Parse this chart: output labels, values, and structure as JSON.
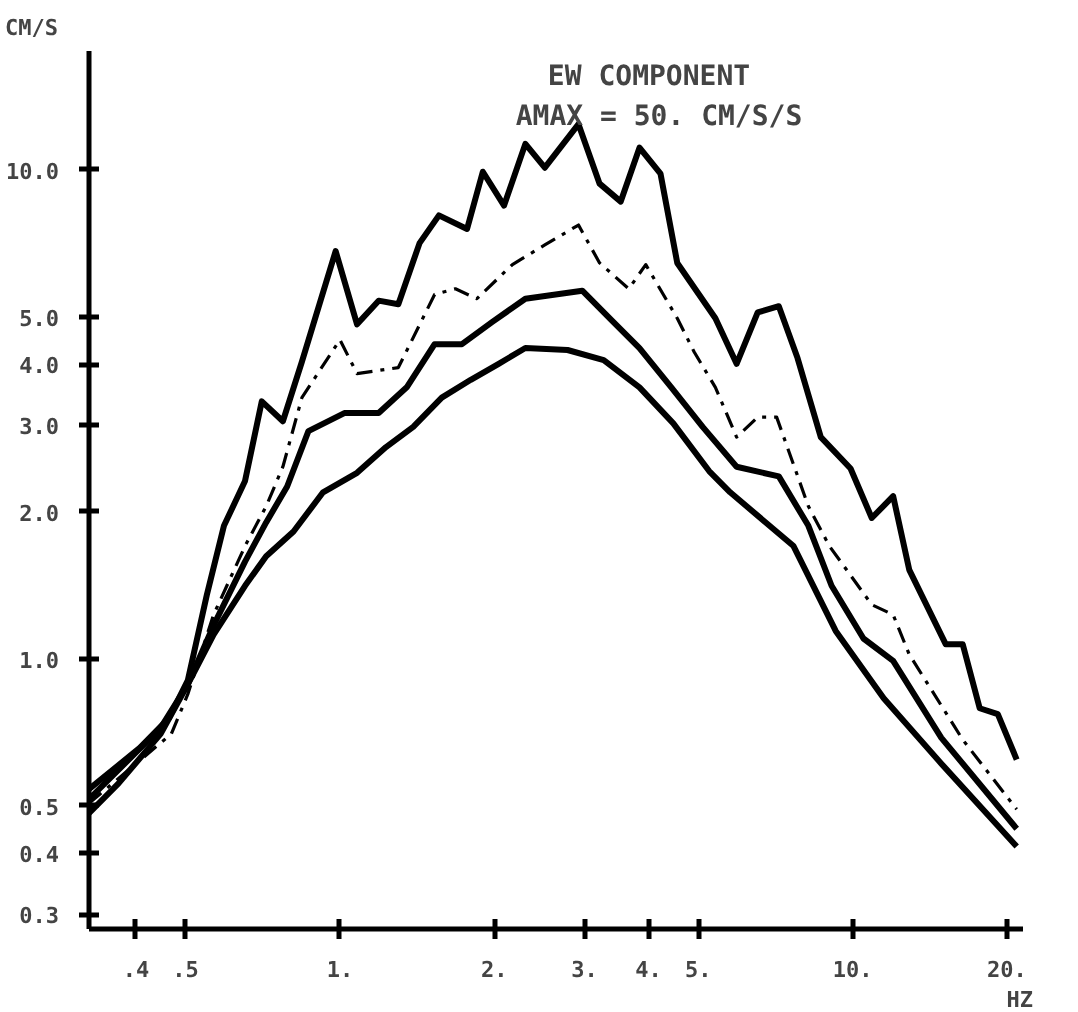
{
  "chart_data": {
    "type": "line",
    "title": "EW COMPONENT",
    "subtitle": "AMAX = 50. CM/S/S",
    "xlabel": "HZ",
    "ylabel": "CM/S",
    "log": "xy",
    "grid": false,
    "marker": "none",
    "xlim": [
      0.324,
      21.5
    ],
    "ylim": [
      0.28,
      17.5
    ],
    "xticks": [
      {
        "value": 0.4,
        "label": ".4"
      },
      {
        "value": 0.5,
        "label": ".5"
      },
      {
        "value": 1,
        "label": "1."
      },
      {
        "value": 2,
        "label": "2."
      },
      {
        "value": 3,
        "label": "3."
      },
      {
        "value": 4,
        "label": "4."
      },
      {
        "value": 5,
        "label": "5."
      },
      {
        "value": 10,
        "label": "10."
      },
      {
        "value": 20,
        "label": "20."
      }
    ],
    "yticks": [
      {
        "value": 0.3,
        "label": "0.3"
      },
      {
        "value": 0.4,
        "label": "0.4"
      },
      {
        "value": 0.5,
        "label": "0.5"
      },
      {
        "value": 1,
        "label": "1.0"
      },
      {
        "value": 2,
        "label": "2.0"
      },
      {
        "value": 3,
        "label": "3.0"
      },
      {
        "value": 4,
        "label": "4.0"
      },
      {
        "value": 5,
        "label": "5.0"
      },
      {
        "value": 10,
        "label": "10.0"
      }
    ],
    "series": [
      {
        "color": "#000000",
        "line_style": "solid",
        "x": [
          0.324,
          0.407,
          0.464,
          0.505,
          0.55,
          0.594,
          0.653,
          0.704,
          0.774,
          0.843,
          0.981,
          1.08,
          1.19,
          1.3,
          1.43,
          1.56,
          1.77,
          1.9,
          2.09,
          2.3,
          2.51,
          2.92,
          3.21,
          3.53,
          3.84,
          4.22,
          4.55,
          5.4,
          5.94,
          6.53,
          7.18,
          7.81,
          8.67,
          9.91,
          10.9,
          12.0,
          12.9,
          15.2,
          16.4,
          17.7,
          19.2,
          20.9
        ],
        "values": [
          0.541,
          0.657,
          0.756,
          0.903,
          1.35,
          1.87,
          2.31,
          3.36,
          3.06,
          4.05,
          6.82,
          4.83,
          5.4,
          5.31,
          7.08,
          8.07,
          7.57,
          9.91,
          8.45,
          11.3,
          10.1,
          12.4,
          9.37,
          8.61,
          11.1,
          9.82,
          6.45,
          4.97,
          4.01,
          5.11,
          5.26,
          4.12,
          2.84,
          2.45,
          1.94,
          2.15,
          1.52,
          1.07,
          1.07,
          0.792,
          0.77,
          0.622
        ]
      },
      {
        "color": "#000000",
        "line_style": "dashed",
        "x": [
          0.324,
          0.469,
          0.505,
          0.567,
          0.653,
          0.718,
          0.774,
          0.843,
          1.0,
          1.08,
          1.3,
          1.53,
          1.68,
          1.85,
          2.17,
          2.51,
          2.92,
          3.21,
          3.66,
          3.95,
          4.55,
          4.91,
          5.4,
          5.94,
          6.53,
          7.11,
          8.2,
          9.01,
          10.9,
          12.0,
          12.9,
          16.4,
          20.9
        ],
        "values": [
          0.506,
          0.702,
          0.846,
          1.23,
          1.7,
          2.05,
          2.47,
          3.42,
          4.49,
          3.83,
          3.94,
          5.56,
          5.71,
          5.45,
          6.4,
          7.02,
          7.71,
          6.45,
          5.71,
          6.4,
          4.97,
          4.24,
          3.59,
          2.84,
          3.12,
          3.12,
          2.05,
          1.7,
          1.29,
          1.23,
          1.02,
          0.683,
          0.492
        ]
      },
      {
        "color": "#000000",
        "line_style": "solid",
        "x": [
          0.324,
          0.447,
          0.505,
          0.567,
          0.653,
          0.718,
          0.789,
          0.868,
          1.02,
          1.19,
          1.35,
          1.53,
          1.73,
          1.98,
          2.3,
          2.97,
          3.36,
          3.84,
          4.43,
          5.1,
          5.94,
          7.18,
          8.2,
          9.1,
          10.5,
          12.0,
          14.9,
          20.9
        ],
        "values": [
          0.516,
          0.722,
          0.886,
          1.17,
          1.58,
          1.9,
          2.25,
          2.92,
          3.18,
          3.18,
          3.59,
          4.4,
          4.4,
          4.88,
          5.45,
          5.66,
          4.97,
          4.32,
          3.59,
          2.98,
          2.47,
          2.36,
          1.87,
          1.41,
          1.1,
          0.99,
          0.689,
          0.449
        ]
      },
      {
        "color": "#000000",
        "line_style": "solid",
        "x": [
          0.324,
          0.37,
          0.447,
          0.505,
          0.567,
          0.653,
          0.718,
          0.812,
          0.927,
          1.08,
          1.23,
          1.39,
          1.58,
          1.8,
          2.04,
          2.3,
          2.78,
          3.27,
          3.84,
          4.47,
          5.25,
          5.77,
          7.67,
          9.27,
          11.5,
          14.9,
          20.9
        ],
        "values": [
          0.483,
          0.556,
          0.702,
          0.886,
          1.12,
          1.41,
          1.62,
          1.82,
          2.19,
          2.4,
          2.71,
          2.98,
          3.42,
          3.72,
          4.01,
          4.32,
          4.28,
          4.08,
          3.59,
          3.03,
          2.42,
          2.19,
          1.7,
          1.14,
          0.83,
          0.61,
          0.413
        ]
      }
    ]
  }
}
